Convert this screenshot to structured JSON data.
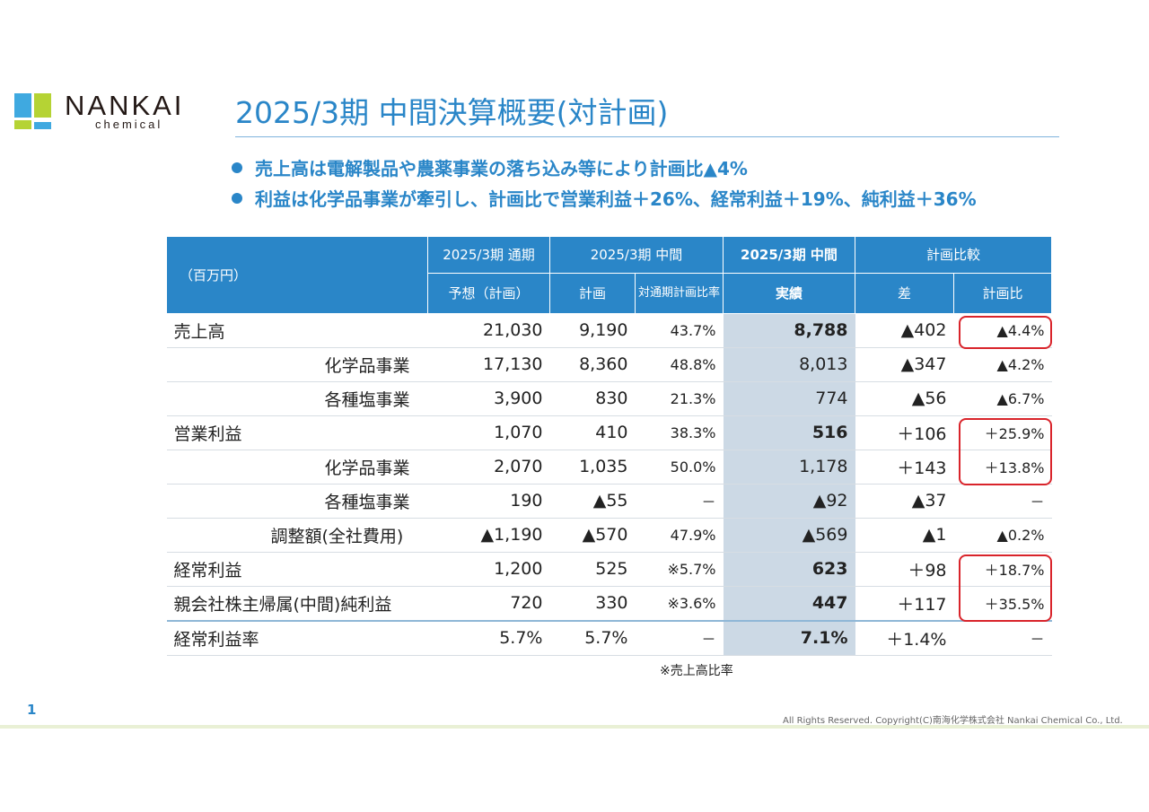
{
  "logo": {
    "text": "NANKAI",
    "sub": "chemical",
    "colors": {
      "blue": "#3fa9e0",
      "green": "#b5d334"
    }
  },
  "title": "2025/3期 中間決算概要(対計画)",
  "bullets": [
    "売上高は電解製品や農薬事業の落ち込み等により計画比▲4%",
    "利益は化学品事業が牽引し、計画比で営業利益＋26%、経常利益＋19%、純利益＋36%"
  ],
  "table": {
    "unit": "（百万円）",
    "header_top": [
      "2025/3期 通期",
      "2025/3期 中間",
      "2025/3期 中間",
      "計画比較"
    ],
    "header_sub": [
      "予想（計画）",
      "計画",
      "対通期計画比率",
      "実績",
      "差",
      "計画比"
    ],
    "rows": [
      {
        "label": "売上高",
        "indent": 0,
        "bold": true,
        "cells": [
          "21,030",
          "9,190",
          "43.7%",
          "8,788",
          "▲402",
          "▲4.4%"
        ],
        "highlighted": true
      },
      {
        "label": "化学品事業",
        "indent": 2,
        "bold": false,
        "cells": [
          "17,130",
          "8,360",
          "48.8%",
          "8,013",
          "▲347",
          "▲4.2%"
        ]
      },
      {
        "label": "各種塩事業",
        "indent": 2,
        "bold": false,
        "cells": [
          "3,900",
          "830",
          "21.3%",
          "774",
          "▲56",
          "▲6.7%"
        ]
      },
      {
        "label": "営業利益",
        "indent": 0,
        "bold": true,
        "cells": [
          "1,070",
          "410",
          "38.3%",
          "516",
          "＋106",
          "＋25.9%"
        ],
        "highlighted": true
      },
      {
        "label": "化学品事業",
        "indent": 2,
        "bold": false,
        "cells": [
          "2,070",
          "1,035",
          "50.0%",
          "1,178",
          "＋143",
          "＋13.8%"
        ],
        "highlighted": true
      },
      {
        "label": "各種塩事業",
        "indent": 2,
        "bold": false,
        "cells": [
          "190",
          "▲55",
          "－",
          "▲92",
          "▲37",
          "－"
        ]
      },
      {
        "label": "調整額(全社費用)",
        "indent": 1,
        "bold": false,
        "cells": [
          "▲1,190",
          "▲570",
          "47.9%",
          "▲569",
          "▲1",
          "▲0.2%"
        ]
      },
      {
        "label": "経常利益",
        "indent": 0,
        "bold": true,
        "cells": [
          "1,200",
          "525",
          "※5.7%",
          "623",
          "＋98",
          "＋18.7%"
        ],
        "highlighted": true
      },
      {
        "label": "親会社株主帰属(中間)純利益",
        "indent": 0,
        "bold": true,
        "cells": [
          "720",
          "330",
          "※3.6%",
          "447",
          "＋117",
          "＋35.5%"
        ],
        "highlighted": true
      },
      {
        "label": "経常利益率",
        "indent": 0,
        "bold": true,
        "cells": [
          "5.7%",
          "5.7%",
          "－",
          "7.1%",
          "＋1.4%",
          "－"
        ]
      }
    ],
    "note": "※売上高比率"
  },
  "page_number": "1",
  "copyright": "All Rights Reserved. Copyright(C)南海化学株式会社 Nankai Chemical Co., Ltd."
}
